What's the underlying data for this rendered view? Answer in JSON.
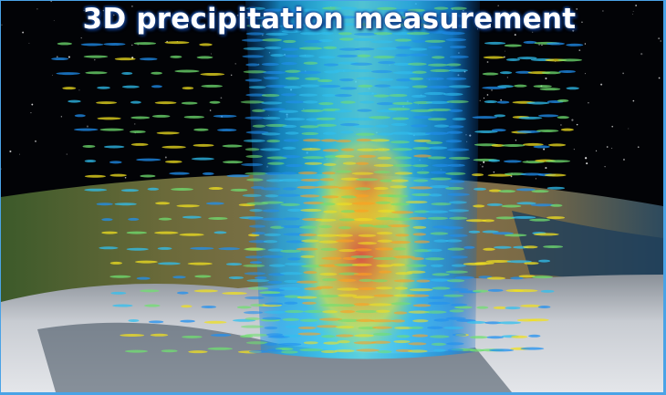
{
  "title": "3D precipitation measurement"
}
